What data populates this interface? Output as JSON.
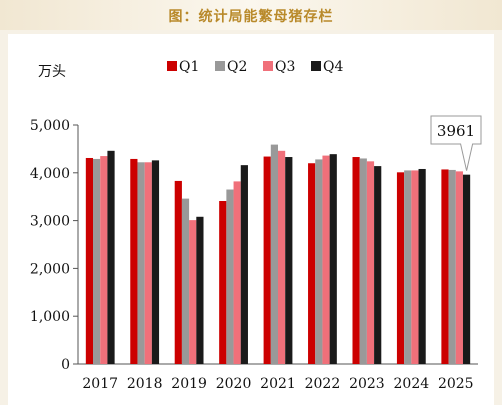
{
  "header": {
    "title": "图：统计局能繁母猪存栏"
  },
  "chart_data": {
    "type": "bar",
    "ylabel": "万头",
    "ylim": [
      0,
      5000
    ],
    "yticks": [
      0,
      1000,
      2000,
      3000,
      4000,
      5000
    ],
    "ytick_labels": [
      "0",
      "1,000",
      "2,000",
      "3,000",
      "4,000",
      "5,000"
    ],
    "categories": [
      "2017",
      "2018",
      "2019",
      "2020",
      "2021",
      "2022",
      "2023",
      "2024",
      "2025"
    ],
    "legend_position": "top",
    "series": [
      {
        "name": "Q1",
        "color": "#cc0000",
        "values": [
          4310,
          4290,
          3830,
          3410,
          4340,
          4200,
          4330,
          4010,
          4070
        ]
      },
      {
        "name": "Q2",
        "color": "#999999",
        "values": [
          4290,
          4220,
          3460,
          3650,
          4590,
          4280,
          4300,
          4050,
          4060
        ]
      },
      {
        "name": "Q3",
        "color": "#f0707a",
        "values": [
          4350,
          4220,
          3010,
          3820,
          4460,
          4360,
          4240,
          4050,
          4030
        ]
      },
      {
        "name": "Q4",
        "color": "#1a1a1a",
        "values": [
          4460,
          4260,
          3080,
          4160,
          4330,
          4390,
          4140,
          4080,
          3961
        ]
      }
    ],
    "annotation": {
      "text": "3961",
      "series": "Q4",
      "category": "2025"
    }
  }
}
